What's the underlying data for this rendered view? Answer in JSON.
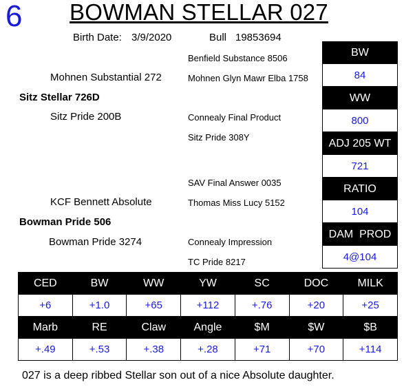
{
  "lot_number": "6",
  "animal_name": "BOWMAN STELLAR 027",
  "birth_date_label": "Birth Date:",
  "birth_date": "3/9/2020",
  "type_label": "Bull",
  "registration": "19853694",
  "pedigree": {
    "sire": "Sitz Stellar 726D",
    "sire_sire": "Mohnen Substantial 272",
    "sire_sire_sire": "Benfield Substance 8506",
    "sire_sire_dam": "Mohnen Glyn Mawr Elba 1758",
    "sire_dam": "Sitz Pride 200B",
    "sire_dam_sire": "Connealy Final Product",
    "sire_dam_dam": "Sitz Pride 308Y",
    "dam": "Bowman Pride 506",
    "dam_sire": "KCF Bennett Absolute",
    "dam_sire_sire": "SAV Final Answer 0035",
    "dam_sire_dam": "Thomas Miss Lucy 5152",
    "dam_dam": "Bowman Pride 3274",
    "dam_dam_sire": "Connealy Impression",
    "dam_dam_dam": "TC Pride 8217"
  },
  "performance": [
    {
      "label": "BW",
      "value": "84"
    },
    {
      "label": "WW",
      "value": "800"
    },
    {
      "label": "ADJ 205 WT",
      "value": "721"
    },
    {
      "label": "RATIO",
      "value": "104"
    },
    {
      "label": "DAM  PROD",
      "value": "4@104"
    }
  ],
  "epd_row1": {
    "headers": [
      "CED",
      "BW",
      "WW",
      "YW",
      "SC",
      "DOC",
      "MILK"
    ],
    "values": [
      "+6",
      "+1.0",
      "+65",
      "+112",
      "+.76",
      "+20",
      "+25"
    ]
  },
  "epd_row2": {
    "headers": [
      "Marb",
      "RE",
      "Claw",
      "Angle",
      "$M",
      "$W",
      "$B"
    ],
    "values": [
      "+.49",
      "+.53",
      "+.38",
      "+.28",
      "+71",
      "+70",
      "+114"
    ]
  },
  "comment": "027 is a deep ribbed Stellar son out of a nice Absolute daughter.",
  "colors": {
    "accent_blue": "#1a1adb",
    "header_black": "#000000"
  }
}
